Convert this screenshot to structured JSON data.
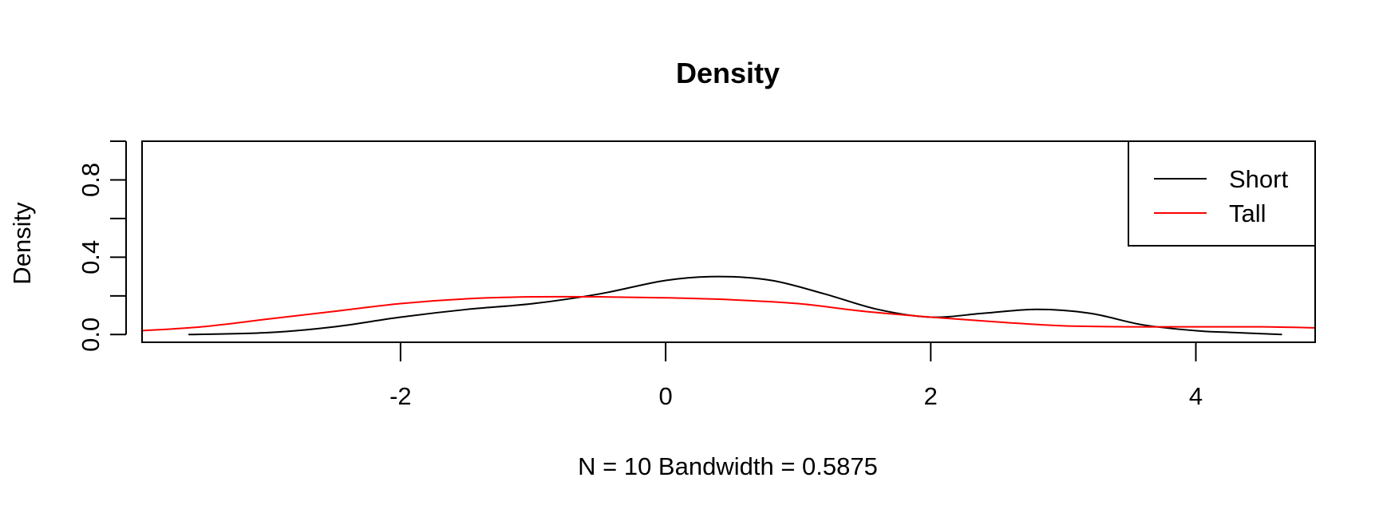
{
  "chart_data": {
    "type": "line",
    "title": "Density",
    "xlabel": "N = 10   Bandwidth = 0.5875",
    "ylabel": "Density",
    "xlim": [
      -3.95,
      4.9
    ],
    "ylim": [
      -0.04,
      1.0
    ],
    "xticks": [
      -2,
      0,
      2,
      4
    ],
    "xtick_labels": [
      "-2",
      "0",
      "2",
      "4"
    ],
    "yticks": [
      0.0,
      0.2,
      0.4,
      0.6,
      0.8,
      1.0
    ],
    "ytick_labels": [
      "0.0",
      "0.4",
      "0.8"
    ],
    "ytick_label_values": [
      0.0,
      0.4,
      0.8
    ],
    "legend": {
      "position": "top-right",
      "entries": [
        "Short",
        "Tall"
      ]
    },
    "series": [
      {
        "name": "Short",
        "color": "#000000",
        "x": [
          -3.6,
          -3.0,
          -2.5,
          -2.0,
          -1.5,
          -1.0,
          -0.5,
          0.0,
          0.4,
          0.8,
          1.2,
          1.6,
          2.0,
          2.4,
          2.8,
          3.2,
          3.6,
          4.0,
          4.3,
          4.65
        ],
        "y": [
          0.0,
          0.01,
          0.04,
          0.09,
          0.13,
          0.16,
          0.21,
          0.28,
          0.3,
          0.28,
          0.21,
          0.13,
          0.09,
          0.11,
          0.13,
          0.11,
          0.05,
          0.02,
          0.01,
          0.0
        ]
      },
      {
        "name": "Tall",
        "color": "#ff0000",
        "x": [
          -3.95,
          -3.5,
          -3.0,
          -2.5,
          -2.0,
          -1.5,
          -1.0,
          -0.5,
          0.0,
          0.5,
          1.0,
          1.5,
          2.0,
          2.5,
          3.0,
          3.5,
          4.0,
          4.5,
          4.9
        ],
        "y": [
          0.02,
          0.04,
          0.08,
          0.12,
          0.16,
          0.185,
          0.195,
          0.195,
          0.19,
          0.18,
          0.16,
          0.12,
          0.09,
          0.065,
          0.045,
          0.04,
          0.04,
          0.04,
          0.035
        ]
      }
    ]
  }
}
